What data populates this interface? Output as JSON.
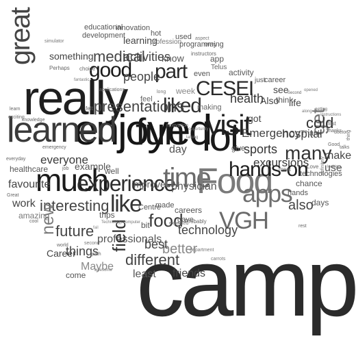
{
  "words": [
    {
      "id": "camp",
      "text": "camp",
      "shade": "#2b2b2b"
    },
    {
      "id": "really",
      "text": "really",
      "shade": "#1f1f1f"
    },
    {
      "id": "enjoyed",
      "text": "enjoyed",
      "shade": "#151515"
    },
    {
      "id": "fun",
      "text": "fun",
      "shade": "#1a1a1a"
    },
    {
      "id": "learned",
      "text": "learned",
      "shade": "#3a3a3a"
    },
    {
      "id": "lot",
      "text": "lot",
      "shade": "#1a1a1a"
    },
    {
      "id": "visit",
      "text": "visit",
      "shade": "#222222"
    },
    {
      "id": "much",
      "text": "much",
      "shade": "#1a1a1a"
    },
    {
      "id": "experience",
      "text": "experience",
      "shade": "#2e2e2e"
    },
    {
      "id": "time",
      "text": "time",
      "shade": "#6a6a6a"
    },
    {
      "id": "food-cap",
      "text": "Food",
      "shade": "#7a7a7a"
    },
    {
      "id": "vgh",
      "text": "VGH",
      "shade": "#6a6a6a"
    },
    {
      "id": "apps",
      "text": "apps",
      "shade": "#6f6f6f"
    },
    {
      "id": "hands-on",
      "text": "hands-on",
      "shade": "#1f1f1f"
    },
    {
      "id": "great",
      "text": "great",
      "shade": "#444444"
    },
    {
      "id": "good",
      "text": "good",
      "shade": "#1a1a1a"
    },
    {
      "id": "part",
      "text": "part",
      "shade": "#2a2a2a"
    },
    {
      "id": "liked",
      "text": "liked",
      "shade": "#2e2e2e"
    },
    {
      "id": "like",
      "text": "like",
      "shade": "#333333"
    },
    {
      "id": "food",
      "text": "food",
      "shade": "#3a3a3a"
    },
    {
      "id": "cesei",
      "text": "CESEI",
      "shade": "#2a2a2a"
    },
    {
      "id": "many",
      "text": "many",
      "shade": "#333333"
    },
    {
      "id": "get",
      "text": "get",
      "shade": "#777777"
    },
    {
      "id": "cold",
      "text": "cold",
      "shade": "#333333"
    },
    {
      "id": "health",
      "text": "health",
      "shade": "#333333"
    },
    {
      "id": "sports",
      "text": "sports",
      "shade": "#333333"
    },
    {
      "id": "excursions",
      "text": "excursions",
      "shade": "#3a3a3a"
    },
    {
      "id": "emergency",
      "text": "Emergency",
      "shade": "#444444"
    },
    {
      "id": "hospital",
      "text": "hospital",
      "shade": "#444444"
    },
    {
      "id": "make",
      "text": "make",
      "shade": "#444444"
    },
    {
      "id": "also",
      "text": "also",
      "shade": "#444444"
    },
    {
      "id": "interesting",
      "text": "interesting",
      "shade": "#444444"
    },
    {
      "id": "new",
      "text": "new",
      "shade": "#7a7a7a"
    },
    {
      "id": "future",
      "text": "future",
      "shade": "#444444"
    },
    {
      "id": "presentations",
      "text": "presentations",
      "shade": "#444444"
    },
    {
      "id": "people",
      "text": "people",
      "shade": "#444444"
    },
    {
      "id": "medical",
      "text": "medical",
      "shade": "#444444"
    },
    {
      "id": "activities",
      "text": "activities",
      "shade": "#444444"
    },
    {
      "id": "everyone",
      "text": "everyone",
      "shade": "#3a3a3a"
    },
    {
      "id": "favourite",
      "text": "favourite",
      "shade": "#444444"
    },
    {
      "id": "work",
      "text": "work",
      "shade": "#444444"
    },
    {
      "id": "professionals",
      "text": "professionals",
      "shade": "#555555"
    },
    {
      "id": "technology",
      "text": "technology",
      "shade": "#444444"
    },
    {
      "id": "better",
      "text": "better",
      "shade": "#888888"
    },
    {
      "id": "best",
      "text": "best",
      "shade": "#444444"
    },
    {
      "id": "field",
      "text": "field",
      "shade": "#333333"
    },
    {
      "id": "different",
      "text": "different",
      "shade": "#444444"
    },
    {
      "id": "friends",
      "text": "friends",
      "shade": "#444444"
    },
    {
      "id": "things",
      "text": "things",
      "shade": "#444444"
    },
    {
      "id": "career-cap",
      "text": "Career",
      "shade": "#444444"
    },
    {
      "id": "maybe",
      "text": "Maybe",
      "shade": "#888888"
    },
    {
      "id": "least",
      "text": "least",
      "shade": "#555555"
    },
    {
      "id": "physician",
      "text": "physician",
      "shade": "#555555"
    },
    {
      "id": "improve",
      "text": "improve",
      "shade": "#555555"
    },
    {
      "id": "day",
      "text": "day",
      "shade": "#555555"
    },
    {
      "id": "something",
      "text": "something",
      "shade": "#444444"
    },
    {
      "id": "learning",
      "text": "learning",
      "shade": "#444444"
    },
    {
      "id": "know",
      "text": "know",
      "shade": "#555555"
    },
    {
      "id": "example",
      "text": "example",
      "shade": "#555555"
    },
    {
      "id": "also-small",
      "text": "Also",
      "shade": "#444444"
    },
    {
      "id": "see",
      "text": "see",
      "shade": "#444444"
    },
    {
      "id": "life",
      "text": "life",
      "shade": "#444444"
    },
    {
      "id": "got",
      "text": "got",
      "shade": "#444444"
    },
    {
      "id": "activity",
      "text": "activity",
      "shade": "#555555"
    },
    {
      "id": "chance",
      "text": "chance",
      "shade": "#555555"
    },
    {
      "id": "use",
      "text": "use",
      "shade": "#555555"
    },
    {
      "id": "technologies",
      "text": "technologies",
      "shade": "#555555"
    },
    {
      "id": "educational",
      "text": "educational",
      "shade": "#555555"
    },
    {
      "id": "development",
      "text": "development",
      "shade": "#555555"
    },
    {
      "id": "innovation",
      "text": "innovation",
      "shade": "#555555"
    },
    {
      "id": "used",
      "text": "used",
      "shade": "#555555"
    },
    {
      "id": "programming",
      "text": "programming",
      "shade": "#555555"
    },
    {
      "id": "profession",
      "text": "profession",
      "shade": "#777777"
    },
    {
      "id": "hot",
      "text": "hot",
      "shade": "#555555"
    },
    {
      "id": "app",
      "text": "app",
      "shade": "#555555"
    },
    {
      "id": "telus",
      "text": "Telus",
      "shade": "#666666"
    },
    {
      "id": "even",
      "text": "even",
      "shade": "#555555"
    },
    {
      "id": "career",
      "text": "career",
      "shade": "#555555"
    },
    {
      "id": "just",
      "text": "just",
      "shade": "#555555"
    },
    {
      "id": "careers",
      "text": "careers",
      "shade": "#555555"
    },
    {
      "id": "trips",
      "text": "trips",
      "shade": "#555555"
    },
    {
      "id": "bit",
      "text": "bit",
      "shade": "#555555"
    },
    {
      "id": "well",
      "text": "well",
      "shade": "#555555"
    },
    {
      "id": "made",
      "text": "made",
      "shade": "#555555"
    },
    {
      "id": "hands",
      "text": "hands",
      "shade": "#555555"
    },
    {
      "id": "days",
      "text": "days",
      "shade": "#555555"
    },
    {
      "id": "come",
      "text": "come",
      "shade": "#555555"
    },
    {
      "id": "week",
      "text": "week",
      "shade": "#888888"
    },
    {
      "id": "making",
      "text": "making",
      "shade": "#666666"
    },
    {
      "id": "think",
      "text": "think",
      "shade": "#555555"
    },
    {
      "id": "thank",
      "text": "Thank",
      "shade": "#555555"
    },
    {
      "id": "centre",
      "text": "Centre",
      "shade": "#555555"
    },
    {
      "id": "gave",
      "text": "gave",
      "shade": "#555555"
    },
    {
      "id": "feel",
      "text": "feel",
      "shade": "#666666"
    },
    {
      "id": "give",
      "text": "give",
      "shade": "#555555"
    },
    {
      "id": "healthcare",
      "text": "healthcare",
      "shade": "#555555"
    },
    {
      "id": "amazing",
      "text": "amazing",
      "shade": "#777777"
    },
    {
      "id": "perhaps",
      "text": "Perhaps",
      "shade": "#666666"
    },
    {
      "id": "simulator",
      "text": "simulator",
      "shade": "#777777"
    },
    {
      "id": "applications",
      "text": "applications",
      "shade": "#666666"
    },
    {
      "id": "choice",
      "text": "choice",
      "shade": "#666666"
    },
    {
      "id": "felt",
      "text": "felt",
      "shade": "#666666"
    },
    {
      "id": "way",
      "text": "way",
      "shade": "#666666"
    },
    {
      "id": "instructors",
      "text": "instructors",
      "shade": "#666666"
    },
    {
      "id": "aspect",
      "text": "aspect",
      "shade": "#777777"
    },
    {
      "id": "learn",
      "text": "learn",
      "shade": "#666666"
    },
    {
      "id": "exciting",
      "text": "exciting",
      "shade": "#666666"
    },
    {
      "id": "knowledge",
      "text": "knowledge",
      "shade": "#666666"
    },
    {
      "id": "everyday",
      "text": "everyday",
      "shade": "#666666"
    },
    {
      "id": "emergency-small",
      "text": "emergency",
      "shade": "#666666"
    },
    {
      "id": "great-small",
      "text": "Great",
      "shade": "#666666"
    },
    {
      "id": "job",
      "text": "job",
      "shade": "#666666"
    },
    {
      "id": "cool",
      "text": "cool",
      "shade": "#666666"
    },
    {
      "id": "world",
      "text": "world",
      "shade": "#666666"
    },
    {
      "id": "path",
      "text": "path",
      "shade": "#666666"
    },
    {
      "id": "awesome",
      "text": "awesome",
      "shade": "#777777"
    },
    {
      "id": "second",
      "text": "second",
      "shade": "#777777"
    },
    {
      "id": "fantastic",
      "text": "fantastic",
      "shade": "#777777"
    },
    {
      "id": "probably",
      "text": "Probably",
      "shade": "#666666"
    },
    {
      "id": "expected",
      "text": "expected",
      "shade": "#777777"
    },
    {
      "id": "department",
      "text": "department",
      "shade": "#777777"
    },
    {
      "id": "carrots",
      "text": "carrots",
      "shade": "#777777"
    },
    {
      "id": "meet",
      "text": "meet",
      "shade": "#666666"
    },
    {
      "id": "rest",
      "text": "rest",
      "shade": "#666666"
    },
    {
      "id": "love",
      "text": "Love",
      "shade": "#666666"
    },
    {
      "id": "definitely",
      "text": "definitely",
      "shade": "#777777"
    },
    {
      "id": "looking",
      "text": "looking",
      "shade": "#777777"
    },
    {
      "id": "first",
      "text": "first",
      "shade": "#666666"
    },
    {
      "id": "doctor",
      "text": "doctor",
      "shade": "#666666"
    },
    {
      "id": "talks",
      "text": "talks",
      "shade": "#666666"
    },
    {
      "id": "thing",
      "text": "thing",
      "shade": "#666666"
    },
    {
      "id": "thanks",
      "text": "Thanks",
      "shade": "#666666"
    },
    {
      "id": "getting",
      "text": "getting",
      "shade": "#666666"
    },
    {
      "id": "opened",
      "text": "opened",
      "shade": "#777777"
    },
    {
      "id": "second-cap",
      "text": "Second",
      "shade": "#666666"
    },
    {
      "id": "along",
      "text": "along",
      "shade": "#777777"
    },
    {
      "id": "instructions",
      "text": "instructions",
      "shade": "#777777"
    },
    {
      "id": "good-small",
      "text": "Good",
      "shade": "#666666"
    },
    {
      "id": "innovation-small",
      "text": "innovation",
      "shade": "#777777"
    },
    {
      "id": "opportunity",
      "text": "opportunity",
      "shade": "#777777"
    },
    {
      "id": "talking",
      "text": "talking",
      "shade": "#777777"
    },
    {
      "id": "technology-computer",
      "text": "Technology/computer",
      "shade": "#777777"
    },
    {
      "id": "long",
      "text": "long",
      "shade": "#777777"
    },
    {
      "id": "fail",
      "text": "fail",
      "shade": "#888888"
    }
  ]
}
